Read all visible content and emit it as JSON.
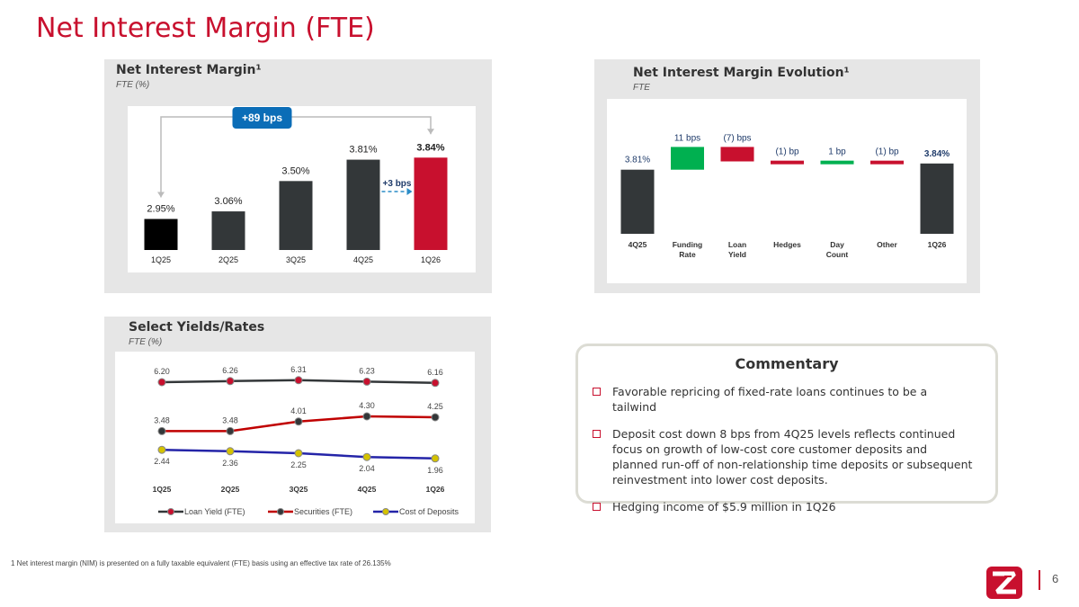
{
  "page": {
    "title": "Net Interest Margin (FTE)",
    "footnote": "1   Net interest margin (NIM) is presented on a fully taxable equivalent (FTE) basis using an effective tax rate of 26.135%",
    "page_number": "6",
    "logo_icon": "zions-logo-icon"
  },
  "colors": {
    "accent": "#c8102e",
    "dark_bar": "#333739",
    "black": "#000000",
    "green": "#00b050",
    "blue_badge": "#0b6db7",
    "arrow_teal": "#2a8cc7",
    "navy_label": "#1f3b6a"
  },
  "panels": {
    "nim": {
      "title": "Net Interest Margin¹",
      "subtitle": "FTE (%)"
    },
    "evolution": {
      "title": "Net Interest Margin Evolution¹",
      "subtitle": "FTE"
    },
    "yields": {
      "title": "Select Yields/Rates",
      "subtitle": "FTE (%)"
    }
  },
  "chart_data": [
    {
      "type": "bar",
      "id": "nim",
      "categories": [
        "1Q25",
        "2Q25",
        "3Q25",
        "4Q25",
        "1Q26"
      ],
      "values": [
        2.95,
        3.06,
        3.5,
        3.81,
        3.84
      ],
      "labels": [
        "2.95%",
        "3.06%",
        "3.50%",
        "3.81%",
        "3.84%"
      ],
      "ylim": [
        2.5,
        4.0
      ],
      "annotations": {
        "yoy": "+89 bps",
        "qoq": "+3 bps"
      }
    },
    {
      "type": "waterfall",
      "id": "evolution",
      "categories": [
        "4Q25",
        "Funding Rate",
        "Loan Yield",
        "Hedges",
        "Day Count",
        "Other",
        "1Q26"
      ],
      "category_lines": [
        [
          "4Q25"
        ],
        [
          "Funding",
          "Rate"
        ],
        [
          "Loan",
          "Yield"
        ],
        [
          "Hedges"
        ],
        [
          "Day",
          "Count"
        ],
        [
          "Other"
        ],
        [
          "1Q26"
        ]
      ],
      "start": 3.81,
      "changes_bps": [
        11,
        -7,
        -1,
        1,
        -1
      ],
      "end": 3.84,
      "labels": [
        "3.81%",
        "11 bps",
        "(7) bps",
        "(1) bp",
        "1 bp",
        "(1) bp",
        "3.84%"
      ]
    },
    {
      "type": "line",
      "id": "yields",
      "categories": [
        "1Q25",
        "2Q25",
        "3Q25",
        "4Q25",
        "1Q26"
      ],
      "series": [
        {
          "name": "Loan Yield (FTE)",
          "values": [
            6.2,
            6.26,
            6.31,
            6.23,
            6.16
          ],
          "labels": [
            "6.20",
            "6.26",
            "6.31",
            "6.23",
            "6.16"
          ],
          "line_color": "#333739",
          "marker_color": "#c8102e"
        },
        {
          "name": "Securities (FTE)",
          "values": [
            3.48,
            3.48,
            4.01,
            4.3,
            4.25
          ],
          "labels": [
            "3.48",
            "3.48",
            "4.01",
            "4.30",
            "4.25"
          ],
          "line_color": "#c00000",
          "marker_color": "#333739"
        },
        {
          "name": "Cost of Deposits",
          "values": [
            2.44,
            2.36,
            2.25,
            2.04,
            1.96
          ],
          "labels": [
            "2.44",
            "2.36",
            "2.25",
            "2.04",
            "1.96"
          ],
          "line_color": "#2424a8",
          "marker_color": "#d4c200"
        }
      ],
      "ylim": [
        1.5,
        6.8
      ],
      "legend": "bottom"
    }
  ],
  "commentary": {
    "title": "Commentary",
    "items": [
      "Favorable repricing of fixed-rate loans continues to be a tailwind",
      "Deposit cost down 8 bps from 4Q25 levels reflects continued focus on growth of low-cost core customer deposits and planned run-off of non-relationship time deposits or subsequent reinvestment into lower cost deposits.",
      "Hedging income of $5.9 million in 1Q26"
    ]
  }
}
